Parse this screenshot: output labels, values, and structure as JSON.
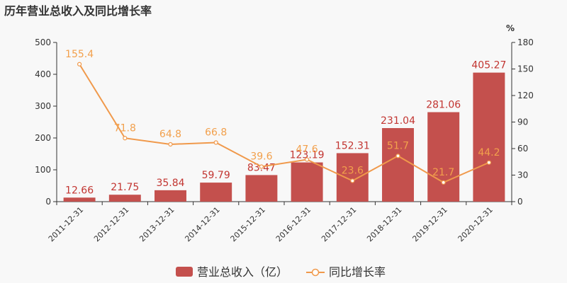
{
  "title": "历年营业总收入及同比增长率",
  "colors": {
    "bar": "#c4504d",
    "line": "#f0994b",
    "axis": "#333333"
  },
  "chart_data": {
    "type": "bar",
    "categories": [
      "2011-12-31",
      "2012-12-31",
      "2013-12-31",
      "2014-12-31",
      "2015-12-31",
      "2016-12-31",
      "2017-12-31",
      "2018-12-31",
      "2019-12-31",
      "2020-12-31"
    ],
    "series": [
      {
        "name": "营业总收入（亿）",
        "type": "bar",
        "axis": "left",
        "values": [
          12.66,
          21.75,
          35.84,
          59.79,
          83.47,
          123.19,
          152.31,
          231.04,
          281.06,
          405.27
        ],
        "labels": [
          "12.66",
          "21.75",
          "35.84",
          "59.79",
          "83.47",
          "123.19",
          "152.31",
          "231.04",
          "281.06",
          "405.27"
        ]
      },
      {
        "name": "同比增长率",
        "type": "line",
        "axis": "right",
        "values": [
          155.4,
          71.8,
          64.8,
          66.8,
          39.6,
          47.6,
          23.6,
          51.7,
          21.7,
          44.2
        ],
        "labels": [
          "155.4",
          "71.8",
          "64.8",
          "66.8",
          "39.6",
          "47.6",
          "23.6",
          "51.7",
          "21.7",
          "44.2"
        ]
      }
    ],
    "y_left": {
      "ylim": [
        0,
        500
      ],
      "ticks": [
        "0",
        "100",
        "200",
        "300",
        "400",
        "500"
      ]
    },
    "y_right": {
      "ylim": [
        0,
        180
      ],
      "unit": "%",
      "ticks": [
        "0",
        "30",
        "60",
        "90",
        "120",
        "150",
        "180"
      ]
    },
    "legend_position": "bottom",
    "grid": false
  }
}
